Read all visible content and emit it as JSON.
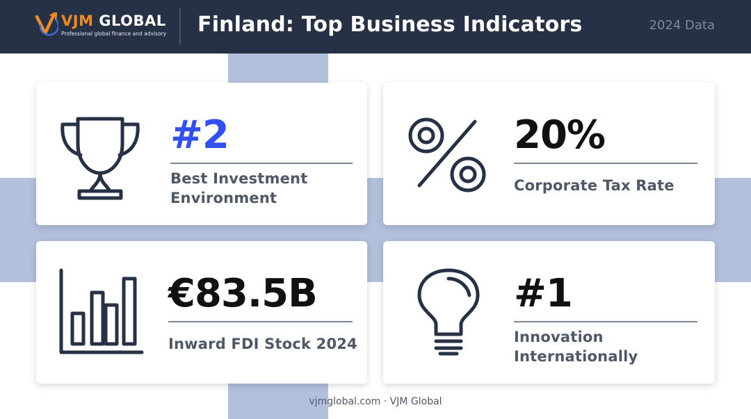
{
  "header": {
    "brand_prefix": "VJM",
    "brand_suffix": " GLOBAL",
    "tagline": "Professional global finance and advisory",
    "title": "Finland: Top Business Indicators",
    "year_label": "2024 Data",
    "logo_icon": "vjm-logo-icon"
  },
  "colors": {
    "header_bg": "#263146",
    "accent_blue": "#3050f0",
    "flag_cross": "#b3c0dc",
    "logo_orange": "#f08a24",
    "logo_blue": "#3a6fd8"
  },
  "cards": [
    {
      "icon": "trophy-icon",
      "value": "#2",
      "label": "Best Investment Environment"
    },
    {
      "icon": "percent-icon",
      "value": "20%",
      "label": "Corporate Tax Rate"
    },
    {
      "icon": "bar-chart-icon",
      "value": "€83.5B",
      "label": "Inward FDI Stock 2024"
    },
    {
      "icon": "lightbulb-icon",
      "value": "#1",
      "label": "Innovation Internationally"
    }
  ],
  "footer": {
    "text": "vjmglobal.com · VJM Global"
  }
}
